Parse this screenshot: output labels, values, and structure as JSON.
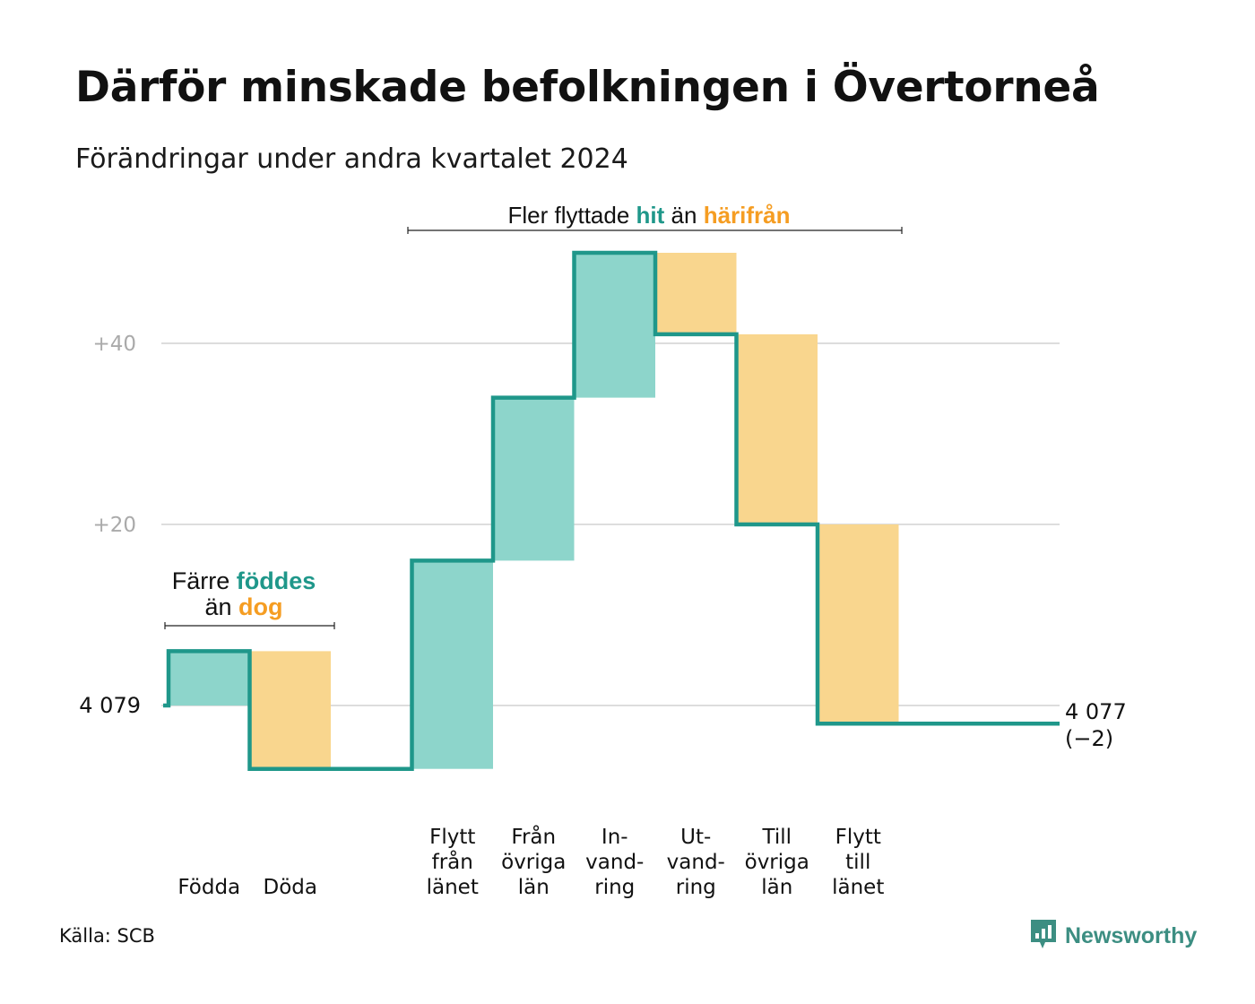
{
  "title": "Därför minskade befolkningen i Övertorneå",
  "subtitle": "Förändringar under andra kvartalet 2024",
  "source": "Källa: SCB",
  "brand": {
    "name": "Newsworthy",
    "icon": "newsworthy-logo-icon"
  },
  "colors": {
    "increase": "#8dd5cb",
    "decrease": "#f9d68e",
    "line": "#1f978a",
    "accent_teal": "#1f978a",
    "accent_orange": "#f59d22",
    "grid": "#dddddd",
    "tick": "#aaaaaa"
  },
  "annotations": {
    "top": {
      "before": "Fler flyttade ",
      "hit": "hit",
      "middle": " än ",
      "harifran": "härifrån"
    },
    "left": {
      "line1_before": "Färre ",
      "line1_highlight": "föddes",
      "line2_before": "än ",
      "line2_highlight": "dog"
    }
  },
  "chart_data": {
    "type": "waterfall",
    "baseline": 4079,
    "baseline_label": "4 079",
    "final_value": 4077,
    "final_label": "4 077",
    "final_change_label": "(−2)",
    "yticks": [
      {
        "value": 20,
        "label": "+20"
      },
      {
        "value": 40,
        "label": "+40"
      }
    ],
    "ylim": [
      -12,
      52
    ],
    "grid": true,
    "steps": [
      {
        "label": [
          "Födda"
        ],
        "delta": 6,
        "kind": "increase"
      },
      {
        "label": [
          "Döda"
        ],
        "delta": -13,
        "kind": "decrease"
      },
      {
        "label": [],
        "delta": 0,
        "kind": "gap"
      },
      {
        "label": [
          "Flytt",
          "från",
          "länet"
        ],
        "delta": 23,
        "kind": "increase"
      },
      {
        "label": [
          "Från",
          "övriga",
          "län"
        ],
        "delta": 18,
        "kind": "increase"
      },
      {
        "label": [
          "In-",
          "vand-",
          "ring"
        ],
        "delta": 16,
        "kind": "increase"
      },
      {
        "label": [
          "Ut-",
          "vand-",
          "ring"
        ],
        "delta": -9,
        "kind": "decrease"
      },
      {
        "label": [
          "Till",
          "övriga",
          "län"
        ],
        "delta": -21,
        "kind": "decrease"
      },
      {
        "label": [
          "Flytt",
          "till",
          "länet"
        ],
        "delta": -22,
        "kind": "decrease"
      }
    ]
  }
}
